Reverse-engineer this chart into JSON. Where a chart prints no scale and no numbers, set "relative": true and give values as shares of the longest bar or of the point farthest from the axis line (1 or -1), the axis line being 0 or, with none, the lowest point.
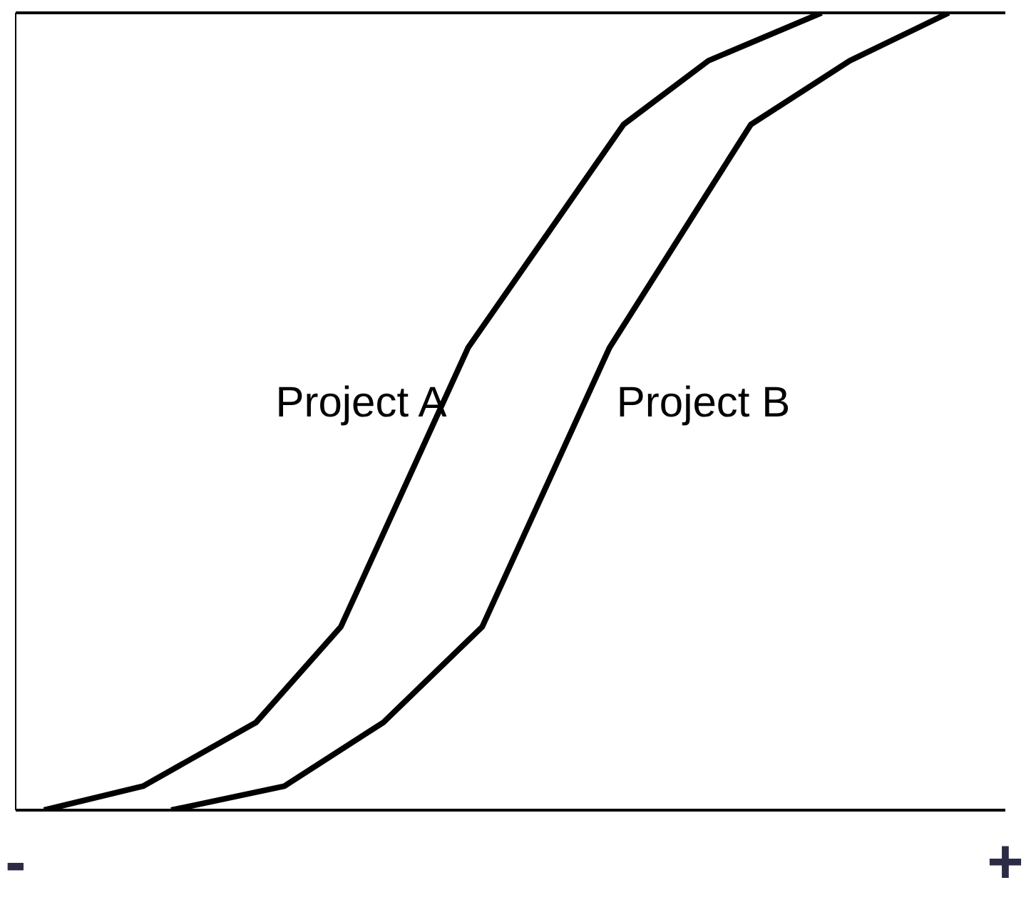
{
  "chart_data": {
    "type": "line",
    "relative": true,
    "categories": [
      "-",
      null,
      null,
      null,
      null,
      null,
      null,
      null,
      null,
      null,
      null,
      null,
      null,
      null,
      null,
      null,
      null,
      null,
      null,
      null,
      null,
      null,
      null,
      null,
      null,
      null,
      null,
      null,
      null,
      null,
      null,
      null,
      null,
      null,
      null,
      null,
      null,
      null,
      null,
      null,
      null,
      null,
      null,
      null,
      null,
      null,
      null,
      null,
      null,
      null,
      null,
      null,
      null,
      null,
      null,
      null,
      null,
      null,
      null,
      null,
      null,
      null,
      null,
      null,
      null,
      null,
      null,
      null,
      null,
      null,
      "+"
    ],
    "legend": false,
    "grid": false,
    "marker": "none",
    "line_style": "solid",
    "series": [
      {
        "name": "Project A",
        "color": "#000000",
        "values": [
          null,
          null,
          0,
          null,
          null,
          null,
          null,
          null,
          null,
          0.03,
          null,
          null,
          null,
          null,
          null,
          null,
          null,
          0.11,
          null,
          null,
          null,
          null,
          null,
          0.23,
          null,
          null,
          null,
          null,
          null,
          null,
          null,
          null,
          0.58,
          null,
          null,
          null,
          null,
          null,
          null,
          null,
          null,
          null,
          null,
          0.86,
          null,
          null,
          null,
          null,
          null,
          0.94,
          null,
          null,
          null,
          null,
          null,
          null,
          null,
          1,
          null,
          null,
          null,
          null,
          null,
          null,
          null,
          null,
          null,
          null,
          null,
          null,
          null
        ]
      },
      {
        "name": "Project B",
        "color": "#000000",
        "values": [
          null,
          null,
          null,
          null,
          null,
          null,
          null,
          null,
          null,
          null,
          null,
          0,
          null,
          null,
          null,
          null,
          null,
          null,
          null,
          0.03,
          null,
          null,
          null,
          null,
          null,
          null,
          0.11,
          null,
          null,
          null,
          null,
          null,
          null,
          0.23,
          null,
          null,
          null,
          null,
          null,
          null,
          null,
          null,
          0.58,
          null,
          null,
          null,
          null,
          null,
          null,
          null,
          null,
          null,
          0.86,
          null,
          null,
          null,
          null,
          null,
          null,
          0.94,
          null,
          null,
          null,
          null,
          null,
          null,
          1,
          null,
          null,
          null,
          null
        ]
      }
    ]
  }
}
